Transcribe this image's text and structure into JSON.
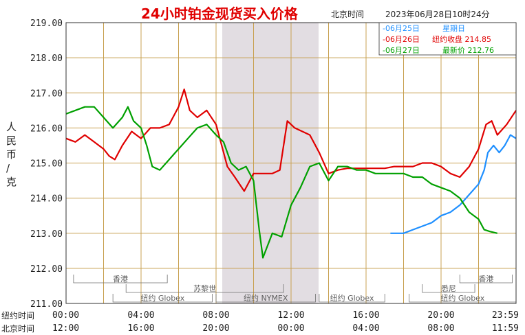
{
  "header": {
    "title": "24小时铂金现货买入价格",
    "beijing_time_label": "北京时间",
    "datetime": "2023年06月28日10时24分"
  },
  "legend": {
    "items": [
      {
        "date": "-06月25日",
        "info": "星期日",
        "color": "#1e8fff"
      },
      {
        "date": "-06月26日",
        "info": "纽约收盘 214.85",
        "color": "#e00000"
      },
      {
        "date": "-06月27日",
        "info": "最新价 212.76",
        "color": "#00a000"
      }
    ]
  },
  "axes": {
    "y_label": "人民币/克",
    "y_ticks": [
      "219.00",
      "218.00",
      "217.00",
      "216.00",
      "215.00",
      "214.00",
      "213.00",
      "212.00",
      "211.00"
    ],
    "row1_label": "纽约时间",
    "row2_label": "北京时间",
    "row1_ticks": [
      "00:00",
      "04:00",
      "08:00",
      "12:00",
      "16:00",
      "20:00",
      "23:59"
    ],
    "row2_ticks": [
      "12:00",
      "16:00",
      "20:00",
      "00:00",
      "04:00",
      "08:00",
      "11:59"
    ]
  },
  "sessions": [
    {
      "label": "香港"
    },
    {
      "label": "苏黎世"
    },
    {
      "label": "纽约 Globex"
    },
    {
      "label": "纽约 NYMEX"
    },
    {
      "label": "纽约 Globex"
    },
    {
      "label": "悉尼"
    },
    {
      "label": "香港"
    },
    {
      "label": "纽约 Globex"
    }
  ],
  "colors": {
    "grid": "#c8a050",
    "frame": "#303030",
    "shade": "#e2dde2",
    "title": "#e00000"
  },
  "chart_data": {
    "type": "line",
    "ylim": [
      211,
      219
    ],
    "x_unit": "hours since 00:00 New York time",
    "xlim": [
      0,
      24
    ],
    "series": [
      {
        "name": "06月25日",
        "color": "#1e8fff",
        "points": [
          [
            17.3,
            213.0
          ],
          [
            18.0,
            213.0
          ],
          [
            18.5,
            213.1
          ],
          [
            19.0,
            213.2
          ],
          [
            19.5,
            213.3
          ],
          [
            20.0,
            213.5
          ],
          [
            20.5,
            213.6
          ],
          [
            21.0,
            213.8
          ],
          [
            21.5,
            214.1
          ],
          [
            22.0,
            214.4
          ],
          [
            22.3,
            214.8
          ],
          [
            22.5,
            215.3
          ],
          [
            22.8,
            215.5
          ],
          [
            23.1,
            215.3
          ],
          [
            23.4,
            215.5
          ],
          [
            23.7,
            215.8
          ],
          [
            24.0,
            215.7
          ]
        ]
      },
      {
        "name": "06月26日",
        "color": "#e00000",
        "points": [
          [
            0.0,
            215.7
          ],
          [
            0.5,
            215.6
          ],
          [
            1.0,
            215.8
          ],
          [
            1.5,
            215.6
          ],
          [
            2.0,
            215.4
          ],
          [
            2.3,
            215.2
          ],
          [
            2.6,
            215.1
          ],
          [
            3.0,
            215.5
          ],
          [
            3.5,
            215.9
          ],
          [
            4.0,
            215.7
          ],
          [
            4.5,
            216.0
          ],
          [
            5.0,
            216.0
          ],
          [
            5.5,
            216.1
          ],
          [
            6.0,
            216.6
          ],
          [
            6.3,
            217.1
          ],
          [
            6.6,
            216.5
          ],
          [
            7.0,
            216.3
          ],
          [
            7.5,
            216.5
          ],
          [
            8.0,
            216.1
          ],
          [
            8.3,
            215.5
          ],
          [
            8.6,
            214.9
          ],
          [
            9.0,
            214.6
          ],
          [
            9.5,
            214.2
          ],
          [
            10.0,
            214.7
          ],
          [
            10.5,
            214.7
          ],
          [
            11.0,
            214.7
          ],
          [
            11.4,
            214.8
          ],
          [
            11.8,
            216.2
          ],
          [
            12.2,
            216.0
          ],
          [
            12.6,
            215.9
          ],
          [
            13.0,
            215.8
          ],
          [
            13.5,
            215.3
          ],
          [
            14.0,
            214.7
          ],
          [
            14.5,
            214.8
          ],
          [
            15.0,
            214.85
          ],
          [
            15.5,
            214.85
          ],
          [
            16.0,
            214.85
          ],
          [
            16.5,
            214.85
          ],
          [
            17.0,
            214.85
          ],
          [
            17.5,
            214.9
          ],
          [
            18.0,
            214.9
          ],
          [
            18.5,
            214.9
          ],
          [
            19.0,
            215.0
          ],
          [
            19.5,
            215.0
          ],
          [
            20.0,
            214.9
          ],
          [
            20.5,
            214.7
          ],
          [
            21.0,
            214.6
          ],
          [
            21.5,
            214.9
          ],
          [
            22.0,
            215.4
          ],
          [
            22.4,
            216.1
          ],
          [
            22.7,
            216.2
          ],
          [
            23.0,
            215.8
          ],
          [
            23.5,
            216.1
          ],
          [
            24.0,
            216.5
          ]
        ]
      },
      {
        "name": "06月27日",
        "color": "#00a000",
        "points": [
          [
            0.0,
            216.4
          ],
          [
            0.5,
            216.5
          ],
          [
            1.0,
            216.6
          ],
          [
            1.5,
            216.6
          ],
          [
            2.0,
            216.3
          ],
          [
            2.5,
            216.0
          ],
          [
            3.0,
            216.3
          ],
          [
            3.3,
            216.6
          ],
          [
            3.6,
            216.2
          ],
          [
            4.0,
            216.0
          ],
          [
            4.3,
            215.5
          ],
          [
            4.6,
            214.9
          ],
          [
            5.0,
            214.8
          ],
          [
            5.5,
            215.1
          ],
          [
            6.0,
            215.4
          ],
          [
            6.5,
            215.7
          ],
          [
            7.0,
            216.0
          ],
          [
            7.5,
            216.1
          ],
          [
            8.0,
            215.8
          ],
          [
            8.4,
            215.6
          ],
          [
            8.8,
            215.0
          ],
          [
            9.2,
            214.8
          ],
          [
            9.6,
            214.9
          ],
          [
            10.0,
            214.5
          ],
          [
            10.3,
            213.1
          ],
          [
            10.5,
            212.3
          ],
          [
            11.0,
            213.0
          ],
          [
            11.5,
            212.9
          ],
          [
            12.0,
            213.8
          ],
          [
            12.5,
            214.3
          ],
          [
            13.0,
            214.9
          ],
          [
            13.5,
            215.0
          ],
          [
            14.0,
            214.5
          ],
          [
            14.5,
            214.9
          ],
          [
            15.0,
            214.9
          ],
          [
            15.5,
            214.8
          ],
          [
            16.0,
            214.8
          ],
          [
            16.5,
            214.7
          ],
          [
            17.0,
            214.7
          ],
          [
            17.5,
            214.7
          ],
          [
            18.0,
            214.7
          ],
          [
            18.5,
            214.6
          ],
          [
            19.0,
            214.6
          ],
          [
            19.5,
            214.4
          ],
          [
            20.0,
            214.3
          ],
          [
            20.5,
            214.2
          ],
          [
            21.0,
            214.0
          ],
          [
            21.5,
            213.6
          ],
          [
            22.0,
            213.4
          ],
          [
            22.3,
            213.1
          ],
          [
            22.6,
            213.05
          ],
          [
            23.0,
            213.0
          ]
        ]
      }
    ]
  }
}
